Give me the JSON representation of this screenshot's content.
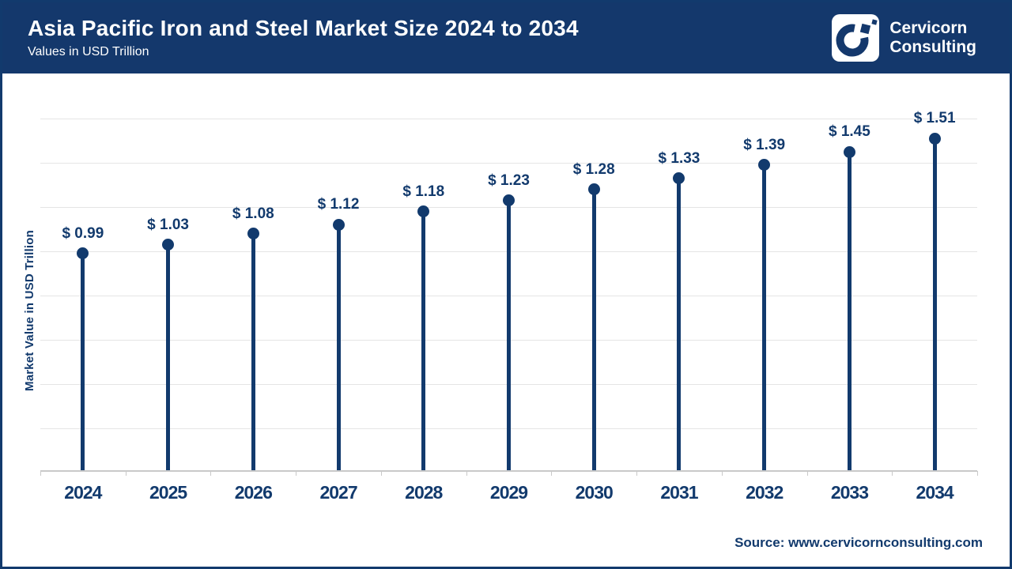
{
  "header": {
    "title": "Asia Pacific Iron and Steel Market Size 2024 to 2034",
    "subtitle": "Values in USD Trillion",
    "brand_line1": "Cervicorn",
    "brand_line2": "Consulting"
  },
  "chart_data": {
    "type": "scatter",
    "style": "lollipop",
    "title": "Asia Pacific Iron and Steel Market Size 2024 to 2034",
    "categories": [
      "2024",
      "2025",
      "2026",
      "2027",
      "2028",
      "2029",
      "2030",
      "2031",
      "2032",
      "2033",
      "2034"
    ],
    "values": [
      0.99,
      1.03,
      1.08,
      1.12,
      1.18,
      1.23,
      1.28,
      1.33,
      1.39,
      1.45,
      1.51
    ],
    "value_labels": [
      "$ 0.99",
      "$ 1.03",
      "$ 1.08",
      "$ 1.12",
      "$ 1.18",
      "$ 1.23",
      "$ 1.28",
      "$ 1.33",
      "$ 1.39",
      "$ 1.45",
      "$ 1.51"
    ],
    "xlabel": "",
    "ylabel": "Market Value in USD Trillion",
    "ylim": [
      0,
      1.6
    ],
    "ytick_step": 0.2,
    "y_tick_labels_shown": false,
    "grid": "horizontal",
    "legend": "none"
  },
  "footer": {
    "source": "Source: www.cervicornconsulting.com"
  },
  "colors": {
    "navy": "#123a6d",
    "header_bg": "#14386c",
    "grid_line": "#e5e5e5",
    "axis_line": "#c9c9c9",
    "text_on_dark": "#ffffff",
    "chart_bg": "#ffffff"
  }
}
